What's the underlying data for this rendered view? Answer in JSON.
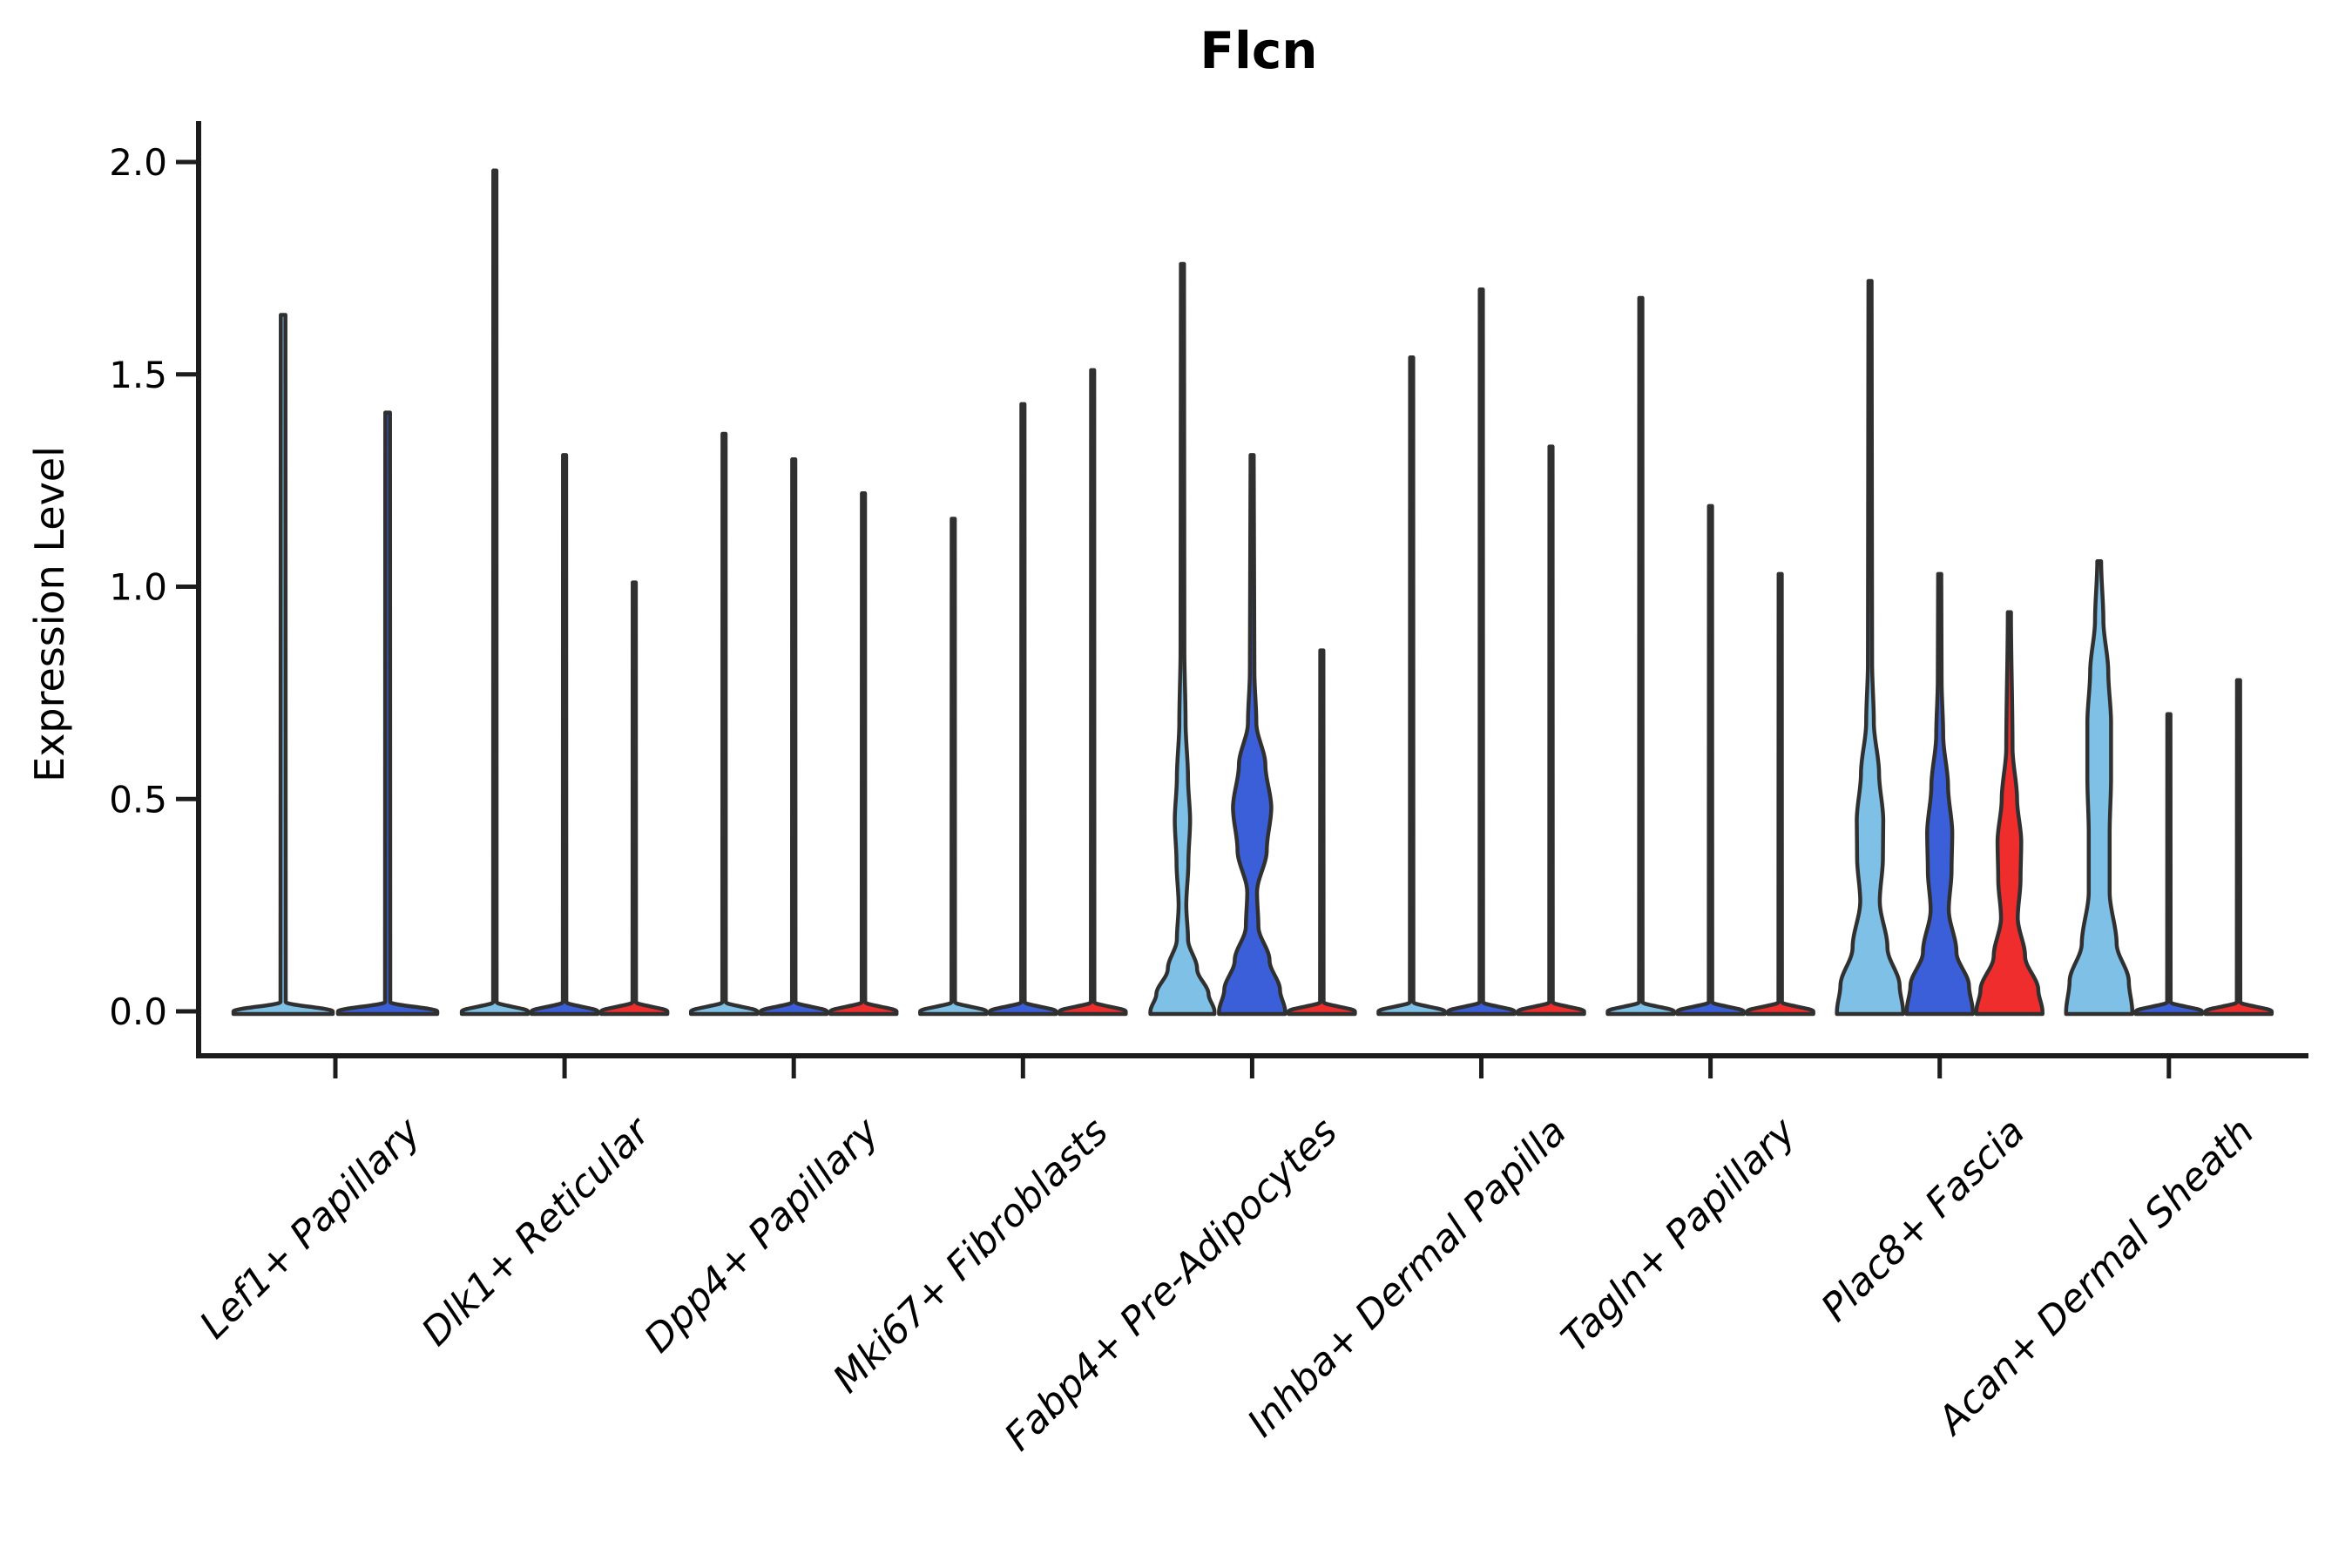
{
  "figure": {
    "background": "#FFFFFF"
  },
  "chart_data": {
    "type": "violin",
    "title": "Flcn",
    "ylabel": "Expression Level",
    "xlabel": "",
    "ylim": [
      0,
      2.1
    ],
    "yticks": [
      {
        "v": 0.0,
        "label": "0.0"
      },
      {
        "v": 0.5,
        "label": "0.5"
      },
      {
        "v": 1.0,
        "label": "1.0"
      },
      {
        "v": 1.5,
        "label": "1.5"
      },
      {
        "v": 2.0,
        "label": "2.0"
      }
    ],
    "grid": "off",
    "legend": "none",
    "xtick_rotation_deg": 45,
    "outline_color": "#303030",
    "spine_color": "#1C1C1C",
    "palette": {
      "light_blue": "#7EC0E6",
      "dark_blue": "#3B5FD9",
      "red": "#EF2D2D"
    },
    "categories": [
      {
        "label": "Lef1+ Papillary",
        "violins": [
          {
            "color": "#7EC0E6",
            "max": 1.64,
            "profile": [
              [
                0,
                0.95
              ],
              [
                0.022,
                0.05
              ],
              [
                1.64,
                0.045
              ]
            ]
          },
          {
            "color": "#3B5FD9",
            "max": 1.41,
            "profile": [
              [
                0,
                0.95
              ],
              [
                0.022,
                0.05
              ],
              [
                1.41,
                0.045
              ]
            ]
          }
        ]
      },
      {
        "label": "Dlk1+ Reticular",
        "violins": [
          {
            "color": "#7EC0E6",
            "max": 1.98,
            "profile": [
              [
                0,
                0.95
              ],
              [
                0.022,
                0.05
              ],
              [
                1.98,
                0.045
              ]
            ]
          },
          {
            "color": "#3B5FD9",
            "max": 1.31,
            "profile": [
              [
                0,
                0.95
              ],
              [
                0.022,
                0.05
              ],
              [
                1.31,
                0.045
              ]
            ]
          },
          {
            "color": "#EF2D2D",
            "max": 1.01,
            "profile": [
              [
                0,
                0.95
              ],
              [
                0.022,
                0.05
              ],
              [
                1.01,
                0.045
              ]
            ]
          }
        ]
      },
      {
        "label": "Dpp4+ Papillary",
        "violins": [
          {
            "color": "#7EC0E6",
            "max": 1.36,
            "profile": [
              [
                0,
                0.95
              ],
              [
                0.022,
                0.05
              ],
              [
                1.36,
                0.045
              ]
            ]
          },
          {
            "color": "#3B5FD9",
            "max": 1.3,
            "profile": [
              [
                0,
                0.95
              ],
              [
                0.022,
                0.05
              ],
              [
                1.3,
                0.045
              ]
            ]
          },
          {
            "color": "#EF2D2D",
            "max": 1.22,
            "profile": [
              [
                0,
                0.95
              ],
              [
                0.022,
                0.05
              ],
              [
                1.22,
                0.045
              ]
            ]
          }
        ]
      },
      {
        "label": "Mki67+ Fibroblasts",
        "violins": [
          {
            "color": "#7EC0E6",
            "max": 1.16,
            "profile": [
              [
                0,
                0.95
              ],
              [
                0.022,
                0.05
              ],
              [
                1.16,
                0.045
              ]
            ]
          },
          {
            "color": "#3B5FD9",
            "max": 1.43,
            "profile": [
              [
                0,
                0.95
              ],
              [
                0.022,
                0.05
              ],
              [
                1.43,
                0.045
              ]
            ]
          },
          {
            "color": "#EF2D2D",
            "max": 1.51,
            "profile": [
              [
                0,
                0.95
              ],
              [
                0.022,
                0.05
              ],
              [
                1.51,
                0.045
              ]
            ]
          }
        ]
      },
      {
        "label": "Fabp4+ Pre-Adipocytes",
        "violins": [
          {
            "color": "#7EC0E6",
            "max": 1.76,
            "profile": [
              [
                0,
                0.92
              ],
              [
                0.04,
                0.75
              ],
              [
                0.1,
                0.42
              ],
              [
                0.17,
                0.16
              ],
              [
                0.25,
                0.11
              ],
              [
                0.35,
                0.17
              ],
              [
                0.45,
                0.22
              ],
              [
                0.55,
                0.16
              ],
              [
                0.68,
                0.09
              ],
              [
                0.85,
                0.055
              ],
              [
                1.76,
                0.045
              ]
            ]
          },
          {
            "color": "#3B5FD9",
            "max": 1.31,
            "profile": [
              [
                0,
                0.95
              ],
              [
                0.05,
                0.8
              ],
              [
                0.12,
                0.5
              ],
              [
                0.2,
                0.18
              ],
              [
                0.28,
                0.14
              ],
              [
                0.38,
                0.42
              ],
              [
                0.48,
                0.55
              ],
              [
                0.58,
                0.38
              ],
              [
                0.68,
                0.12
              ],
              [
                0.8,
                0.065
              ],
              [
                1.31,
                0.045
              ]
            ]
          },
          {
            "color": "#EF2D2D",
            "max": 0.85,
            "profile": [
              [
                0,
                0.95
              ],
              [
                0.022,
                0.05
              ],
              [
                0.85,
                0.045
              ]
            ]
          }
        ]
      },
      {
        "label": "Inhba+ Dermal Papilla",
        "violins": [
          {
            "color": "#7EC0E6",
            "max": 1.54,
            "profile": [
              [
                0,
                0.95
              ],
              [
                0.022,
                0.05
              ],
              [
                1.54,
                0.045
              ]
            ]
          },
          {
            "color": "#3B5FD9",
            "max": 1.7,
            "profile": [
              [
                0,
                0.95
              ],
              [
                0.022,
                0.05
              ],
              [
                1.7,
                0.045
              ]
            ]
          },
          {
            "color": "#EF2D2D",
            "max": 1.33,
            "profile": [
              [
                0,
                0.95
              ],
              [
                0.022,
                0.05
              ],
              [
                1.33,
                0.045
              ]
            ]
          }
        ]
      },
      {
        "label": "Tagln+ Papillary",
        "violins": [
          {
            "color": "#7EC0E6",
            "max": 1.68,
            "profile": [
              [
                0,
                0.95
              ],
              [
                0.022,
                0.05
              ],
              [
                1.68,
                0.045
              ]
            ]
          },
          {
            "color": "#3B5FD9",
            "max": 1.19,
            "profile": [
              [
                0,
                0.95
              ],
              [
                0.022,
                0.05
              ],
              [
                1.19,
                0.045
              ]
            ]
          },
          {
            "color": "#EF2D2D",
            "max": 1.03,
            "profile": [
              [
                0,
                0.95
              ],
              [
                0.022,
                0.05
              ],
              [
                1.03,
                0.045
              ]
            ]
          }
        ]
      },
      {
        "label": "Plac8+ Fascia",
        "violins": [
          {
            "color": "#7EC0E6",
            "max": 1.72,
            "profile": [
              [
                0,
                0.95
              ],
              [
                0.06,
                0.85
              ],
              [
                0.15,
                0.5
              ],
              [
                0.26,
                0.28
              ],
              [
                0.36,
                0.37
              ],
              [
                0.45,
                0.38
              ],
              [
                0.56,
                0.26
              ],
              [
                0.68,
                0.11
              ],
              [
                0.82,
                0.06
              ],
              [
                1.72,
                0.045
              ]
            ]
          },
          {
            "color": "#3B5FD9",
            "max": 1.03,
            "profile": [
              [
                0,
                0.95
              ],
              [
                0.06,
                0.84
              ],
              [
                0.14,
                0.48
              ],
              [
                0.24,
                0.26
              ],
              [
                0.33,
                0.34
              ],
              [
                0.42,
                0.36
              ],
              [
                0.53,
                0.24
              ],
              [
                0.65,
                0.1
              ],
              [
                0.78,
                0.055
              ],
              [
                1.03,
                0.045
              ]
            ]
          },
          {
            "color": "#EF2D2D",
            "max": 0.94,
            "profile": [
              [
                0,
                0.95
              ],
              [
                0.05,
                0.83
              ],
              [
                0.13,
                0.45
              ],
              [
                0.22,
                0.24
              ],
              [
                0.31,
                0.32
              ],
              [
                0.4,
                0.34
              ],
              [
                0.5,
                0.22
              ],
              [
                0.62,
                0.09
              ],
              [
                0.94,
                0.045
              ]
            ]
          }
        ]
      },
      {
        "label": "Acan+ Dermal Sheath",
        "violins": [
          {
            "color": "#7EC0E6",
            "max": 1.06,
            "profile": [
              [
                0,
                0.95
              ],
              [
                0.07,
                0.85
              ],
              [
                0.16,
                0.5
              ],
              [
                0.28,
                0.3
              ],
              [
                0.42,
                0.3
              ],
              [
                0.55,
                0.34
              ],
              [
                0.68,
                0.34
              ],
              [
                0.8,
                0.26
              ],
              [
                0.92,
                0.12
              ],
              [
                1.06,
                0.055
              ]
            ]
          },
          {
            "color": "#3B5FD9",
            "max": 0.7,
            "profile": [
              [
                0,
                0.95
              ],
              [
                0.022,
                0.05
              ],
              [
                0.7,
                0.045
              ]
            ]
          },
          {
            "color": "#EF2D2D",
            "max": 0.78,
            "profile": [
              [
                0,
                0.95
              ],
              [
                0.022,
                0.05
              ],
              [
                0.78,
                0.045
              ]
            ]
          }
        ]
      }
    ]
  }
}
